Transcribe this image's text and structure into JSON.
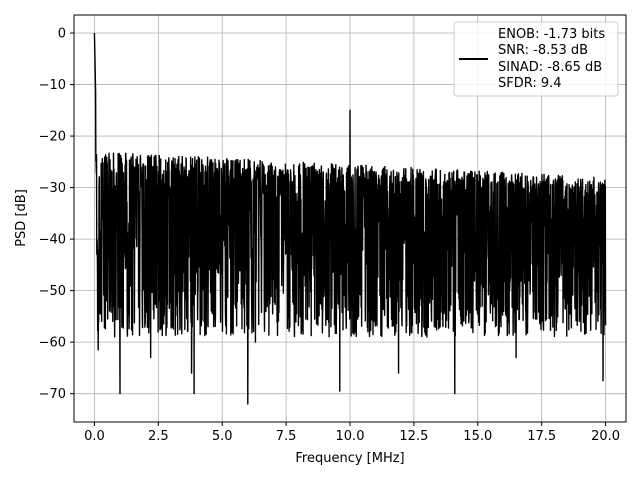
{
  "chart_data": {
    "type": "line",
    "xlabel": "Frequency [MHz]",
    "ylabel": "PSD [dB]",
    "xlim": [
      -0.8,
      20.8
    ],
    "ylim": [
      -75.5,
      3.5
    ],
    "xticks": [
      0.0,
      2.5,
      5.0,
      7.5,
      10.0,
      12.5,
      15.0,
      17.5,
      20.0
    ],
    "xtick_labels": [
      "0.0",
      "2.5",
      "5.0",
      "7.5",
      "10.0",
      "12.5",
      "15.0",
      "17.5",
      "20.0"
    ],
    "yticks": [
      0,
      -10,
      -20,
      -30,
      -40,
      -50,
      -60,
      -70
    ],
    "ytick_labels": [
      "0",
      "−10",
      "−20",
      "−30",
      "−40",
      "−50",
      "−60",
      "−70"
    ],
    "grid": true,
    "legend_position": "upper right",
    "line_color": "#000000",
    "series": [
      {
        "legend_lines": [
          "ENOB: -1.73 bits",
          "SNR: -8.53 dB",
          "SINAD: -8.65 dB",
          "SFDR: 9.4"
        ],
        "features": {
          "dc_peak": {
            "x": 0.0,
            "y": 0
          },
          "tone_peak": {
            "x": 10.0,
            "y": -15
          },
          "noise_floor_upper_start": -23,
          "noise_floor_upper_end": -28,
          "noise_floor_lower": -55,
          "notable_dips": [
            {
              "x": 0.15,
              "y": -61.5
            },
            {
              "x": 1.0,
              "y": -70
            },
            {
              "x": 2.2,
              "y": -63
            },
            {
              "x": 3.8,
              "y": -66
            },
            {
              "x": 3.9,
              "y": -70
            },
            {
              "x": 6.0,
              "y": -72
            },
            {
              "x": 6.3,
              "y": -60
            },
            {
              "x": 9.6,
              "y": -69.5
            },
            {
              "x": 11.9,
              "y": -66
            },
            {
              "x": 14.1,
              "y": -70
            },
            {
              "x": 16.5,
              "y": -63
            },
            {
              "x": 19.9,
              "y": -67.5
            }
          ]
        }
      }
    ]
  }
}
